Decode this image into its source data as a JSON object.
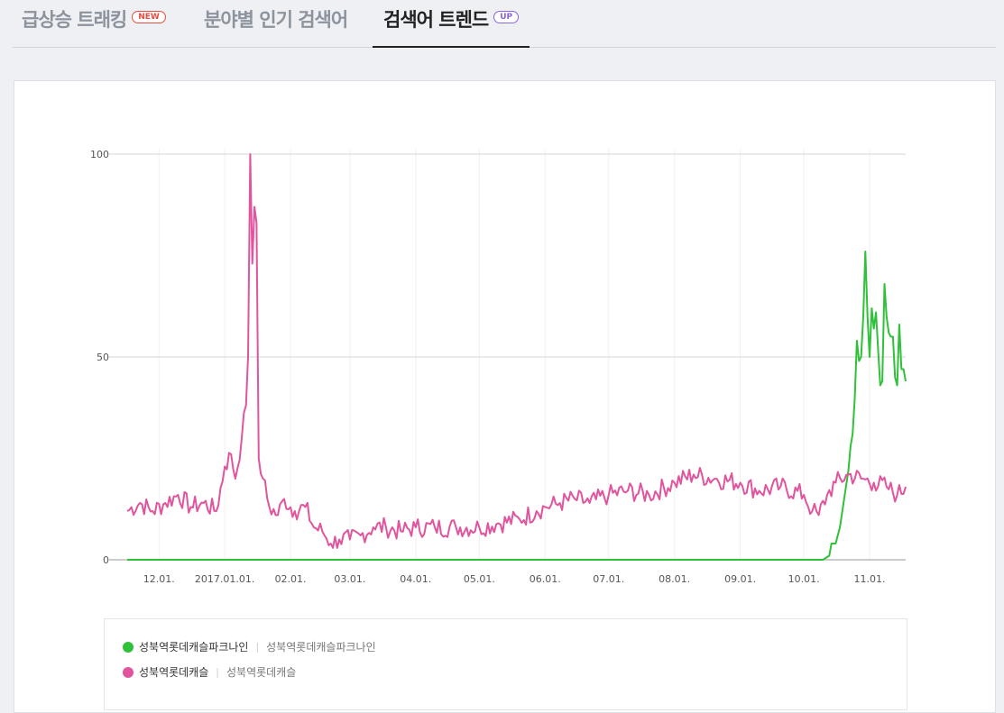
{
  "tabs": [
    {
      "label": "급상승 트래킹",
      "badge": "NEW",
      "badge_kind": "new",
      "active": false
    },
    {
      "label": "분야별 인기 검색어",
      "badge": "",
      "badge_kind": "",
      "active": false
    },
    {
      "label": "검색어 트렌드",
      "badge": "UP",
      "badge_kind": "up",
      "active": true
    }
  ],
  "legend": [
    {
      "name": "성북역롯데캐슬파크나인",
      "sub": "성북역롯데캐슬파크나인",
      "color": "#2fc13a"
    },
    {
      "name": "성북역롯데캐슬",
      "sub": "성북역롯데캐슬",
      "color": "#e0559d"
    }
  ],
  "chart_data": {
    "type": "line",
    "title": "",
    "xlabel": "",
    "ylabel": "",
    "ylim": [
      0,
      100
    ],
    "yticks": [
      0,
      50,
      100
    ],
    "x_start": "2016-11-16",
    "x_end": "2017-11-18",
    "xtick_dates": [
      "2016-12-01",
      "2017-01-01",
      "2017-02-01",
      "2017-03-01",
      "2017-04-01",
      "2017-05-01",
      "2017-06-01",
      "2017-07-01",
      "2017-08-01",
      "2017-09-01",
      "2017-10-01",
      "2017-11-01"
    ],
    "xtick_labels": [
      "12.01.",
      "2017.01.01.",
      "02.01.",
      "03.01.",
      "04.01.",
      "05.01.",
      "06.01.",
      "07.01.",
      "08.01.",
      "09.01.",
      "10.01.",
      "11.01."
    ],
    "grid": true,
    "series": [
      {
        "name": "성북역롯데캐슬파크나인",
        "color": "#2fc13a",
        "points": [
          [
            "2016-11-16",
            0
          ],
          [
            "2017-10-10",
            0
          ],
          [
            "2017-10-13",
            1
          ],
          [
            "2017-10-14",
            4
          ],
          [
            "2017-10-16",
            4
          ],
          [
            "2017-10-18",
            8
          ],
          [
            "2017-10-20",
            15
          ],
          [
            "2017-10-22",
            22
          ],
          [
            "2017-10-23",
            28
          ],
          [
            "2017-10-24",
            31
          ],
          [
            "2017-10-25",
            40
          ],
          [
            "2017-10-26",
            54
          ],
          [
            "2017-10-27",
            49
          ],
          [
            "2017-10-28",
            50
          ],
          [
            "2017-10-29",
            60
          ],
          [
            "2017-10-30",
            76
          ],
          [
            "2017-10-31",
            60
          ],
          [
            "2017-11-01",
            50
          ],
          [
            "2017-11-02",
            62
          ],
          [
            "2017-11-03",
            57
          ],
          [
            "2017-11-04",
            61
          ],
          [
            "2017-11-05",
            52
          ],
          [
            "2017-11-06",
            43
          ],
          [
            "2017-11-07",
            44
          ],
          [
            "2017-11-08",
            68
          ],
          [
            "2017-11-09",
            60
          ],
          [
            "2017-11-10",
            56
          ],
          [
            "2017-11-11",
            55
          ],
          [
            "2017-11-12",
            55
          ],
          [
            "2017-11-13",
            45
          ],
          [
            "2017-11-14",
            43
          ],
          [
            "2017-11-15",
            58
          ],
          [
            "2017-11-16",
            47
          ],
          [
            "2017-11-17",
            47
          ],
          [
            "2017-11-18",
            44
          ]
        ]
      },
      {
        "name": "성북역롯데캐슬",
        "color": "#e0559d",
        "points": [
          [
            "2016-11-16",
            12
          ],
          [
            "2016-11-22",
            14
          ],
          [
            "2016-11-28",
            12
          ],
          [
            "2016-12-04",
            14
          ],
          [
            "2016-12-10",
            16
          ],
          [
            "2016-12-16",
            13
          ],
          [
            "2016-12-22",
            14
          ],
          [
            "2016-12-28",
            12
          ],
          [
            "2017-01-01",
            23
          ],
          [
            "2017-01-04",
            26
          ],
          [
            "2017-01-06",
            20
          ],
          [
            "2017-01-09",
            30
          ],
          [
            "2017-01-11",
            38
          ],
          [
            "2017-01-12",
            50
          ],
          [
            "2017-01-13",
            100
          ],
          [
            "2017-01-14",
            73
          ],
          [
            "2017-01-15",
            87
          ],
          [
            "2017-01-16",
            83
          ],
          [
            "2017-01-17",
            25
          ],
          [
            "2017-01-19",
            20
          ],
          [
            "2017-01-22",
            13
          ],
          [
            "2017-01-26",
            11
          ],
          [
            "2017-01-29",
            15
          ],
          [
            "2017-02-03",
            12
          ],
          [
            "2017-02-08",
            13
          ],
          [
            "2017-02-12",
            8
          ],
          [
            "2017-02-16",
            7
          ],
          [
            "2017-02-20",
            4
          ],
          [
            "2017-02-24",
            5
          ],
          [
            "2017-03-01",
            5
          ],
          [
            "2017-03-06",
            6
          ],
          [
            "2017-03-12",
            8
          ],
          [
            "2017-03-18",
            8
          ],
          [
            "2017-03-25",
            7
          ],
          [
            "2017-04-01",
            8
          ],
          [
            "2017-04-10",
            8
          ],
          [
            "2017-04-20",
            8
          ],
          [
            "2017-05-01",
            8
          ],
          [
            "2017-05-10",
            9
          ],
          [
            "2017-05-20",
            10
          ],
          [
            "2017-05-28",
            12
          ],
          [
            "2017-06-01",
            13
          ],
          [
            "2017-06-08",
            14
          ],
          [
            "2017-06-15",
            15
          ],
          [
            "2017-06-22",
            14
          ],
          [
            "2017-07-01",
            16
          ],
          [
            "2017-07-10",
            17
          ],
          [
            "2017-07-20",
            16
          ],
          [
            "2017-08-01",
            19
          ],
          [
            "2017-08-10",
            21
          ],
          [
            "2017-08-20",
            20
          ],
          [
            "2017-09-01",
            19
          ],
          [
            "2017-09-10",
            17
          ],
          [
            "2017-09-20",
            18
          ],
          [
            "2017-10-01",
            16
          ],
          [
            "2017-10-05",
            12
          ],
          [
            "2017-10-08",
            11
          ],
          [
            "2017-10-12",
            16
          ],
          [
            "2017-10-16",
            19
          ],
          [
            "2017-10-22",
            21
          ],
          [
            "2017-10-28",
            20
          ],
          [
            "2017-11-03",
            19
          ],
          [
            "2017-11-09",
            18
          ],
          [
            "2017-11-14",
            16
          ],
          [
            "2017-11-18",
            18
          ]
        ]
      }
    ]
  }
}
